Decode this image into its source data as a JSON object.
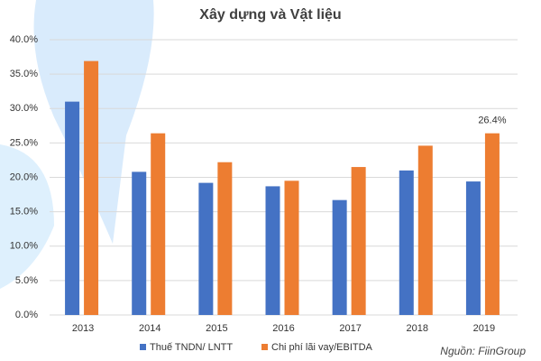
{
  "chart_data": {
    "type": "bar",
    "title": "Xây dựng và Vật liệu",
    "categories": [
      "2013",
      "2014",
      "2015",
      "2016",
      "2017",
      "2018",
      "2019"
    ],
    "series": [
      {
        "name": "Thuế TNDN/ LNTT",
        "color": "#4472c4",
        "values": [
          31.0,
          20.8,
          19.2,
          18.7,
          16.7,
          21.0,
          19.4
        ]
      },
      {
        "name": "Chi phí lãi vay/EBITDA",
        "color": "#ed7d31",
        "values": [
          36.9,
          26.4,
          22.2,
          19.5,
          21.5,
          24.6,
          26.4
        ],
        "value_labels": [
          null,
          null,
          null,
          null,
          null,
          null,
          "26.4%"
        ]
      }
    ],
    "ylim": [
      0,
      40
    ],
    "yticks": [
      {
        "value": 0,
        "label": "0.0%"
      },
      {
        "value": 5,
        "label": "5.0%"
      },
      {
        "value": 10,
        "label": "10.0%"
      },
      {
        "value": 15,
        "label": "15.0%"
      },
      {
        "value": 20,
        "label": "20.0%"
      },
      {
        "value": 25,
        "label": "25.0%"
      },
      {
        "value": 30,
        "label": "30.0%"
      },
      {
        "value": 35,
        "label": "35.0%"
      },
      {
        "value": 40,
        "label": "40.0%"
      }
    ],
    "grid": true,
    "legend": "bottom",
    "annotation": "Nguồn: FiinGroup"
  }
}
